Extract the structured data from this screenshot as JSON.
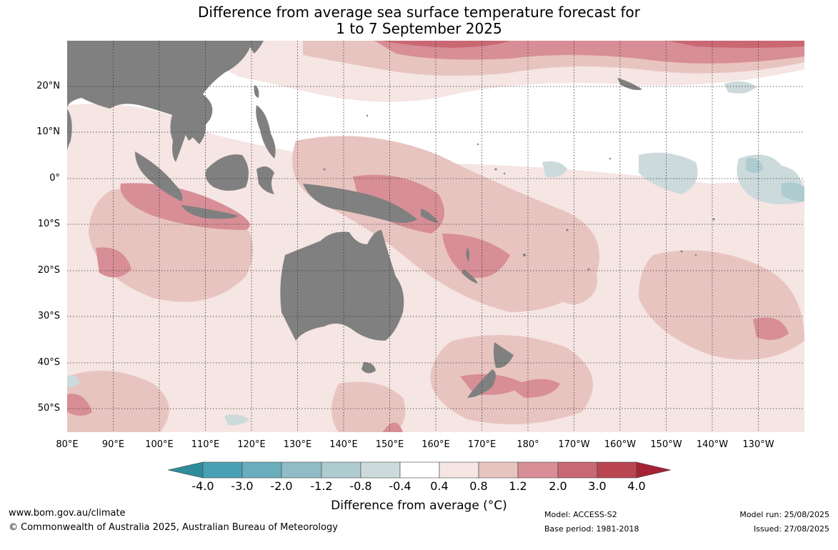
{
  "title": {
    "line1": "Difference from average sea surface temperature forecast for",
    "line2": "1 to 7 September 2025"
  },
  "map": {
    "lat_labels": [
      "20°N",
      "10°N",
      "0°",
      "10°S",
      "20°S",
      "30°S",
      "40°S",
      "50°S"
    ],
    "lon_labels": [
      "80°E",
      "90°E",
      "100°E",
      "110°E",
      "120°E",
      "130°E",
      "140°E",
      "150°E",
      "160°E",
      "170°E",
      "180°",
      "170°W",
      "160°W",
      "150°W",
      "140°W",
      "130°W"
    ],
    "land_color": "#808080",
    "gridline_style": "dotted"
  },
  "legend": {
    "ticks": [
      "-4.0",
      "-3.0",
      "-2.0",
      "-1.2",
      "-0.8",
      "-0.4",
      "0.4",
      "0.8",
      "1.2",
      "2.0",
      "3.0",
      "4.0"
    ],
    "colors": [
      "#2f8c9b",
      "#4aa0b3",
      "#6aaebd",
      "#8fbcc6",
      "#aecbd0",
      "#ccdadc",
      "#ffffff",
      "#f5e5e3",
      "#e8c4c0",
      "#d88e96",
      "#c96873",
      "#b84550",
      "#a52234"
    ],
    "label": "Difference from average (°C)"
  },
  "footer": {
    "url": "www.bom.gov.au/climate",
    "copyright": "© Commonwealth of Australia 2025, Australian Bureau of Meteorology",
    "model": "Model: ACCESS-S2",
    "base_period": "Base period: 1981-2018",
    "model_run": "Model run: 25/08/2025",
    "issued": "Issued: 27/08/2025"
  }
}
